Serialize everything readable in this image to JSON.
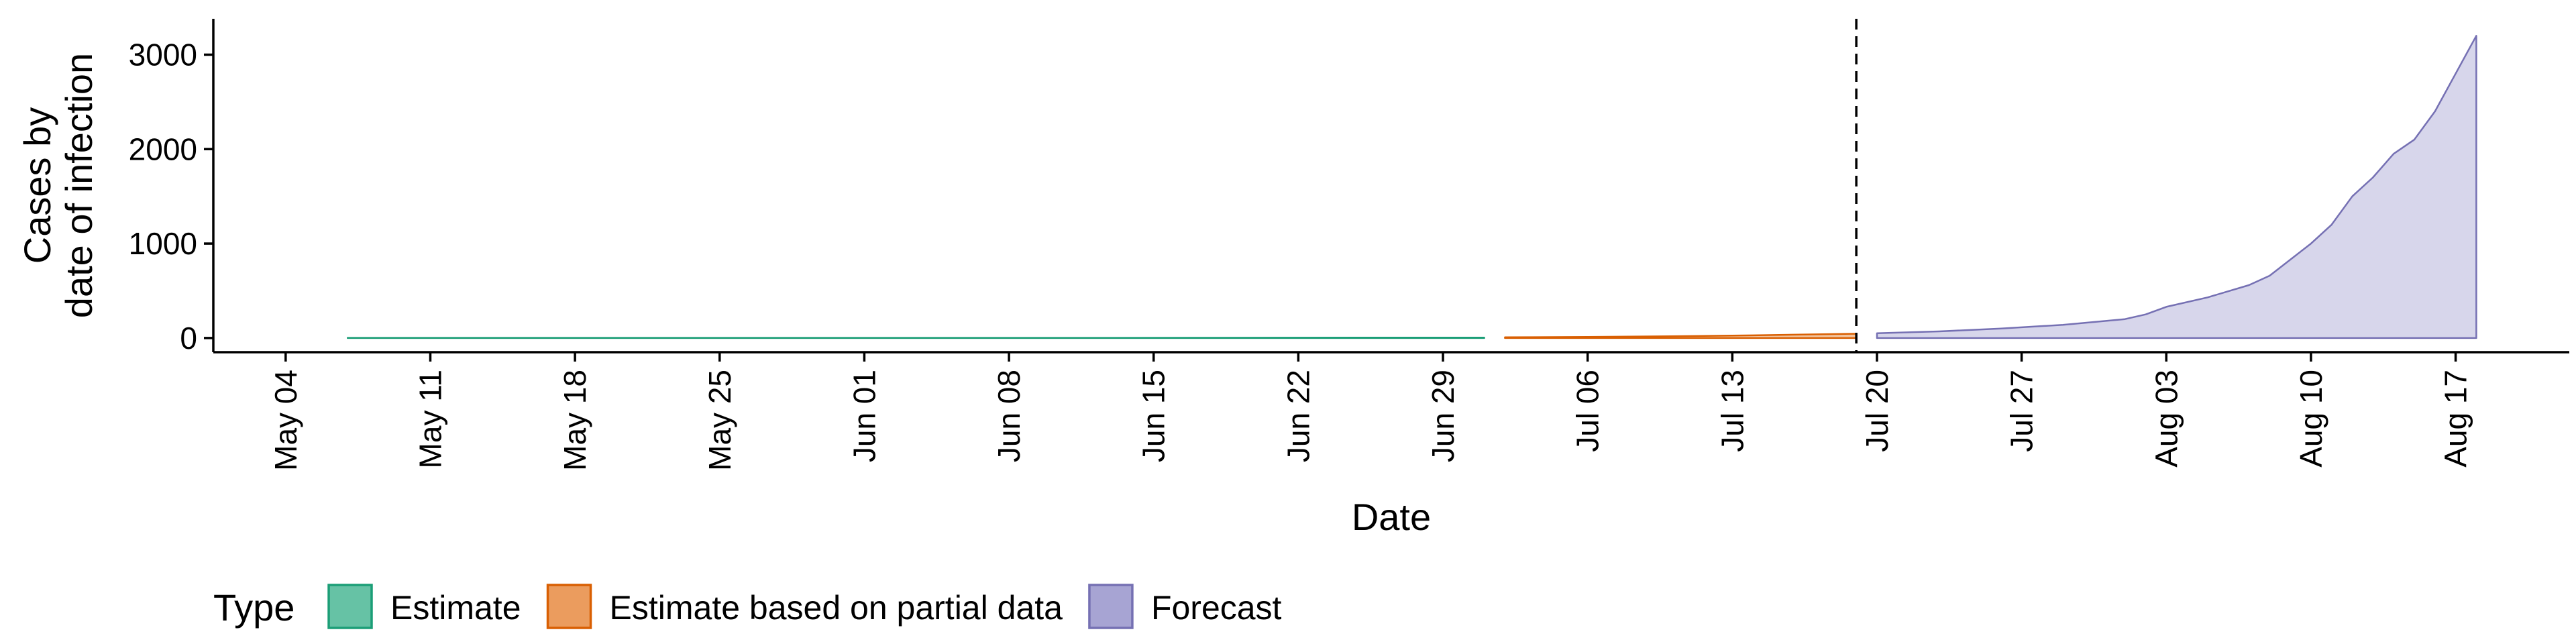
{
  "chart_data": {
    "type": "area",
    "xlabel": "Date",
    "ylabel_lines": [
      "Cases by",
      "date of infection"
    ],
    "x_ticks": [
      "May 04",
      "May 11",
      "May 18",
      "May 25",
      "Jun 01",
      "Jun 08",
      "Jun 15",
      "Jun 22",
      "Jun 29",
      "Jul 06",
      "Jul 13",
      "Jul 20",
      "Jul 27",
      "Aug 03",
      "Aug 10",
      "Aug 17"
    ],
    "y_ticks": [
      0,
      1000,
      2000,
      3000
    ],
    "ylim": [
      -150,
      3380
    ],
    "forecast_start_line": "Jul 19",
    "legend": {
      "title": "Type",
      "position": "bottom",
      "items": [
        {
          "label": "Estimate",
          "fill": "#66c2a5",
          "stroke": "#1b9e77"
        },
        {
          "label": "Estimate based on partial data",
          "fill": "#eb9c5e",
          "stroke": "#d95f02"
        },
        {
          "label": "Forecast",
          "fill": "#a7a4d3",
          "stroke": "#7570b3"
        }
      ]
    },
    "series": [
      {
        "type": "Estimate",
        "points": [
          [
            "May 07",
            0,
            2
          ],
          [
            "May 14",
            0,
            2
          ],
          [
            "May 21",
            0,
            2
          ],
          [
            "May 28",
            0,
            2
          ],
          [
            "Jun 04",
            0,
            2
          ],
          [
            "Jun 11",
            0,
            2
          ],
          [
            "Jun 18",
            0,
            3
          ],
          [
            "Jun 25",
            0,
            4
          ],
          [
            "Jul 01",
            0,
            5
          ]
        ]
      },
      {
        "type": "Estimate based on partial data",
        "points": [
          [
            "Jul 02",
            0,
            8
          ],
          [
            "Jul 06",
            0,
            12
          ],
          [
            "Jul 10",
            0,
            18
          ],
          [
            "Jul 14",
            0,
            28
          ],
          [
            "Jul 19",
            0,
            45
          ]
        ]
      },
      {
        "type": "Forecast",
        "points": [
          [
            "Jul 20",
            0,
            50
          ],
          [
            "Jul 23",
            0,
            70
          ],
          [
            "Jul 26",
            0,
            100
          ],
          [
            "Jul 29",
            0,
            140
          ],
          [
            "Aug 01",
            0,
            200
          ],
          [
            "Aug 02",
            0,
            250
          ],
          [
            "Aug 03",
            0,
            330
          ],
          [
            "Aug 05",
            0,
            430
          ],
          [
            "Aug 07",
            0,
            560
          ],
          [
            "Aug 08",
            0,
            660
          ],
          [
            "Aug 10",
            0,
            1000
          ],
          [
            "Aug 11",
            0,
            1200
          ],
          [
            "Aug 12",
            0,
            1500
          ],
          [
            "Aug 13",
            0,
            1700
          ],
          [
            "Aug 14",
            0,
            1950
          ],
          [
            "Aug 15",
            0,
            2100
          ],
          [
            "Aug 16",
            0,
            2400
          ],
          [
            "Aug 17",
            0,
            2800
          ],
          [
            "Aug 18",
            0,
            3200
          ]
        ]
      }
    ]
  }
}
